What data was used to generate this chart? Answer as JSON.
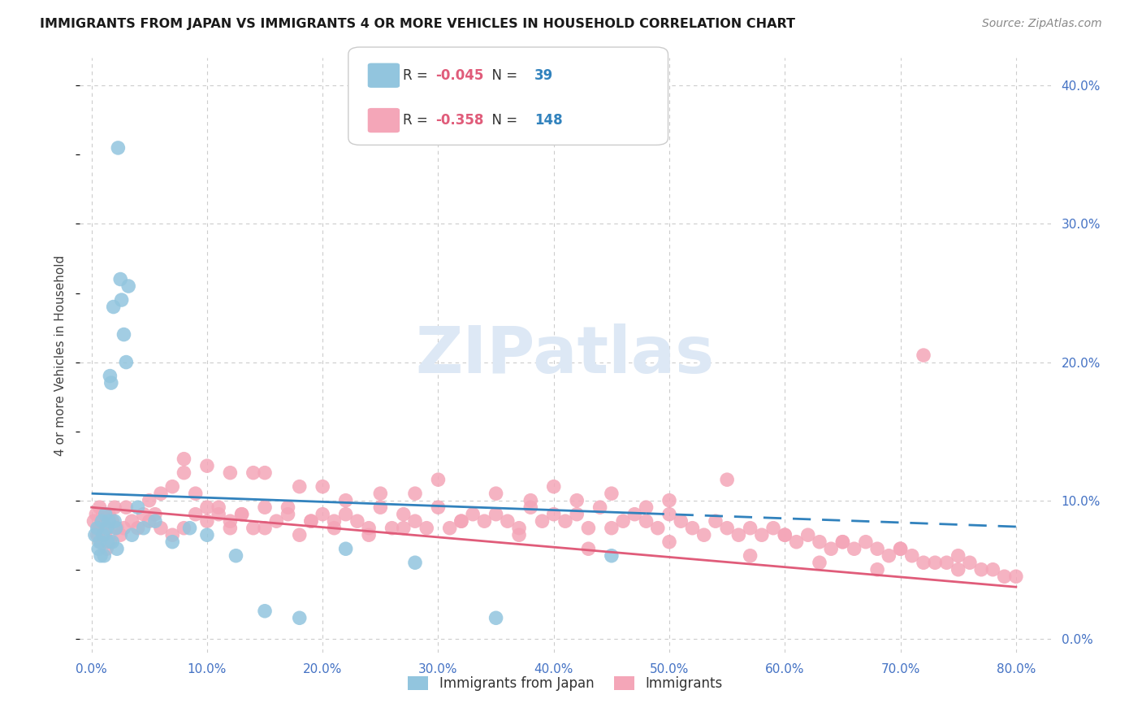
{
  "title": "IMMIGRANTS FROM JAPAN VS IMMIGRANTS 4 OR MORE VEHICLES IN HOUSEHOLD CORRELATION CHART",
  "source": "Source: ZipAtlas.com",
  "ylabel": "4 or more Vehicles in Household",
  "color_blue": "#92c5de",
  "color_pink": "#f4a6b8",
  "color_blue_line": "#3182bd",
  "color_pink_line": "#e05c7a",
  "color_axis_labels": "#4472c4",
  "background_color": "#ffffff",
  "grid_color": "#cccccc",
  "legend1_R": "-0.045",
  "legend1_N": "39",
  "legend2_R": "-0.358",
  "legend2_N": "148",
  "series1_label": "Immigrants from Japan",
  "series2_label": "Immigrants",
  "blue_x": [
    0.3,
    0.5,
    0.6,
    0.7,
    0.8,
    0.9,
    1.0,
    1.1,
    1.2,
    1.3,
    1.4,
    1.5,
    1.6,
    1.7,
    1.8,
    1.9,
    2.0,
    2.1,
    2.2,
    2.3,
    2.5,
    2.6,
    2.8,
    3.0,
    3.2,
    3.5,
    4.0,
    4.5,
    5.5,
    7.0,
    8.5,
    10.0,
    12.5,
    15.0,
    18.0,
    22.0,
    28.0,
    35.0,
    45.0
  ],
  "blue_y": [
    7.5,
    8.0,
    6.5,
    7.0,
    6.0,
    8.5,
    7.5,
    6.0,
    9.0,
    8.0,
    7.0,
    8.5,
    19.0,
    18.5,
    7.0,
    24.0,
    8.5,
    8.0,
    6.5,
    35.5,
    26.0,
    24.5,
    22.0,
    20.0,
    25.5,
    7.5,
    9.5,
    8.0,
    8.5,
    7.0,
    8.0,
    7.5,
    6.0,
    2.0,
    1.5,
    6.5,
    5.5,
    1.5,
    6.0
  ],
  "pink_x": [
    0.2,
    0.4,
    0.5,
    0.6,
    0.7,
    0.8,
    0.9,
    1.0,
    1.1,
    1.2,
    1.3,
    1.4,
    1.5,
    1.6,
    1.8,
    2.0,
    2.2,
    2.5,
    2.8,
    3.0,
    3.5,
    4.0,
    4.5,
    5.0,
    5.5,
    6.0,
    7.0,
    8.0,
    9.0,
    10.0,
    11.0,
    12.0,
    13.0,
    14.0,
    15.0,
    16.0,
    17.0,
    18.0,
    19.0,
    20.0,
    21.0,
    22.0,
    23.0,
    24.0,
    25.0,
    26.0,
    27.0,
    28.0,
    29.0,
    30.0,
    31.0,
    32.0,
    33.0,
    34.0,
    35.0,
    36.0,
    37.0,
    38.0,
    39.0,
    40.0,
    41.0,
    42.0,
    43.0,
    44.0,
    45.0,
    46.0,
    47.0,
    48.0,
    49.0,
    50.0,
    51.0,
    52.0,
    53.0,
    54.0,
    55.0,
    56.0,
    57.0,
    58.0,
    59.0,
    60.0,
    61.0,
    62.0,
    63.0,
    64.0,
    65.0,
    66.0,
    67.0,
    68.0,
    69.0,
    70.0,
    71.0,
    72.0,
    73.0,
    74.0,
    75.0,
    76.0,
    77.0,
    78.0,
    79.0,
    80.0,
    20.0,
    15.0,
    25.0,
    30.0,
    35.0,
    40.0,
    45.0,
    50.0,
    22.0,
    18.0,
    12.0,
    28.0,
    38.0,
    48.0,
    55.0,
    42.0,
    8.0,
    10.0,
    14.0,
    60.0,
    65.0,
    70.0,
    75.0,
    72.0,
    5.0,
    6.0,
    7.0,
    8.0,
    9.0,
    10.0,
    11.0,
    12.0,
    13.0,
    15.0,
    17.0,
    19.0,
    21.0,
    24.0,
    27.0,
    32.0,
    37.0,
    43.0,
    50.0,
    57.0,
    63.0,
    68.0
  ],
  "pink_y": [
    8.5,
    9.0,
    7.5,
    8.0,
    9.5,
    7.0,
    8.0,
    9.0,
    8.5,
    7.5,
    6.5,
    8.0,
    9.0,
    7.0,
    8.5,
    9.5,
    8.0,
    7.5,
    8.0,
    9.5,
    8.5,
    8.0,
    9.0,
    8.5,
    9.0,
    8.0,
    7.5,
    8.0,
    9.0,
    8.5,
    9.5,
    8.0,
    9.0,
    8.0,
    9.5,
    8.5,
    9.0,
    7.5,
    8.5,
    9.0,
    8.5,
    9.0,
    8.5,
    8.0,
    9.5,
    8.0,
    9.0,
    8.5,
    8.0,
    9.5,
    8.0,
    8.5,
    9.0,
    8.5,
    9.0,
    8.5,
    8.0,
    9.5,
    8.5,
    9.0,
    8.5,
    9.0,
    8.0,
    9.5,
    8.0,
    8.5,
    9.0,
    8.5,
    8.0,
    9.0,
    8.5,
    8.0,
    7.5,
    8.5,
    8.0,
    7.5,
    8.0,
    7.5,
    8.0,
    7.5,
    7.0,
    7.5,
    7.0,
    6.5,
    7.0,
    6.5,
    7.0,
    6.5,
    6.0,
    6.5,
    6.0,
    20.5,
    5.5,
    5.5,
    5.0,
    5.5,
    5.0,
    5.0,
    4.5,
    4.5,
    11.0,
    12.0,
    10.5,
    11.5,
    10.5,
    11.0,
    10.5,
    10.0,
    10.0,
    11.0,
    12.0,
    10.5,
    10.0,
    9.5,
    11.5,
    10.0,
    13.0,
    12.5,
    12.0,
    7.5,
    7.0,
    6.5,
    6.0,
    5.5,
    10.0,
    10.5,
    11.0,
    12.0,
    10.5,
    9.5,
    9.0,
    8.5,
    9.0,
    8.0,
    9.5,
    8.5,
    8.0,
    7.5,
    8.0,
    8.5,
    7.5,
    6.5,
    7.0,
    6.0,
    5.5,
    5.0
  ]
}
